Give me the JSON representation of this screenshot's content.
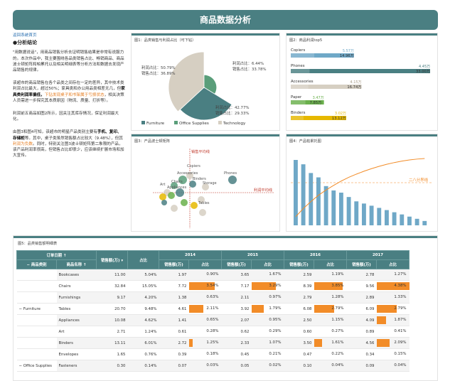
{
  "page": {
    "title": "商品数据分析"
  },
  "left": {
    "link": "返回系统首页",
    "section": "●分析结论",
    "p1": "\"用数据说话\"，用商品销售分析去证明销售结果是非常有说服力的。本次作品中，我主要围绕各品类销售占比、畅销商品、商品波士顿矩阵和帕累托以及相关明细表等分析方法和数据去发现产品销售的规律。",
    "p2a": "该超市的商品销售在各个品类之间存在一定的差异，其中技术类利润占比最大，超过50%；家具类和办公用品类相差无几，但",
    "p2b": "家具类利润率偏低，",
    "p2c": "下钻发现桌子和书架属于亏损状态",
    "p2d": "，相关决策人员需进一步探究其本质原因（物流、质量、打折等）。",
    "p3": "利润前五商品如图2所示，因关注其库存情况，保证利润最大化。",
    "p4a": "由图3和图4可知，该超市的明星产品类别主要有",
    "p4b": "手机、复印、存储柜",
    "p4c": "等。其中，桌子类虽然销售额占比较大（9.48%），但其",
    "p4d": "利润为负数",
    "p4e": "。同时，特别关注图3波士顿矩阵第二象限的产品，该产品利润率很高，但销售占比却很少，应该继续扩展市场和加大宣传。"
  },
  "pie": {
    "panel_title": "图1：品类销售与利润占比（可下钻）",
    "labels": [
      {
        "t": "利润占比：50.79%"
      },
      {
        "t": "销售占比：36.89%"
      },
      {
        "t": "利润占比：6.44%"
      },
      {
        "t": "销售占比：33.78%"
      },
      {
        "t": "利润占比：42.77%"
      },
      {
        "t": "销售占比：29.33%"
      }
    ],
    "legend": [
      "Furniture",
      "Office Supplies",
      "Technology"
    ]
  },
  "colors": {
    "teal": "#4a7f82",
    "furniture": "#4a7f82",
    "office": "#5a9e7a",
    "tech": "#d6cfc2",
    "orange": "#f28c28",
    "green": "#6ab04c",
    "yellow": "#e6b800",
    "blue": "#6fa8c7"
  },
  "chart_data": [
    {
      "type": "pie",
      "title": "",
      "slices": [
        {
          "category": "Technology",
          "profit_share": 50.79,
          "sales_share": 36.89
        },
        {
          "category": "Office Supplies",
          "profit_share": 6.44,
          "sales_share": 33.78
        },
        {
          "category": "Furniture",
          "profit_share": 42.77,
          "sales_share": 29.33
        }
      ]
    },
    {
      "type": "bar",
      "title": "图2：商品利润top5",
      "categories": [
        "Copiers",
        "Phones",
        "Accessories",
        "Paper",
        "Binders"
      ],
      "series": [
        {
          "values": [
            5.57,
            4.45,
            4.15,
            3.47,
            3.02
          ]
        },
        {
          "values": [
            14.96,
            33.0,
            16.74,
            7.85,
            13.12
          ]
        }
      ],
      "labels": [
        [
          "5.57万",
          "14.96万"
        ],
        [
          "4.45万",
          "33.00万"
        ],
        [
          "4.15万",
          "16.74万"
        ],
        [
          "3.47万",
          "7.85万"
        ],
        [
          "3.02万",
          "13.12万"
        ]
      ]
    },
    {
      "type": "scatter",
      "title": "图3：产品波士顿矩阵",
      "ref_lines": [
        "销售平均线",
        "利润平均线"
      ],
      "labels": [
        "Copiers",
        "Accessories",
        "Phones",
        "Chairs",
        "Binders",
        "Storage",
        "Appliances",
        "Art",
        "Tables"
      ]
    },
    {
      "type": "bar",
      "title": "图4：产品帕累托图",
      "line_label": "二八分界线",
      "values": [
        30,
        28,
        24,
        22,
        18,
        16,
        15,
        13,
        11,
        10,
        9,
        8,
        7,
        6,
        5,
        4,
        3,
        2
      ]
    }
  ],
  "table": {
    "title": "图5：品类销售额明细表",
    "h_order_date": "订单日期",
    "h_category": "商品类别",
    "h_name": "商品名称",
    "h_sales": "销售额(万)",
    "h_share": "占比",
    "years": [
      "2014",
      "2015",
      "2016",
      "2017"
    ],
    "group1": "Furniture",
    "group2": "Office Supplies",
    "rows": [
      {
        "name": "Bookcases",
        "sales": "11.00",
        "share": "5.04%",
        "y": [
          [
            "1.97",
            "0.90%"
          ],
          [
            "3.65",
            "1.67%"
          ],
          [
            "2.59",
            "1.19%"
          ],
          [
            "2.78",
            "1.27%"
          ]
        ],
        "f": [
          0.0,
          0.0,
          0.0,
          0.0
        ]
      },
      {
        "name": "Chairs",
        "sales": "32.84",
        "share": "15.05%",
        "y": [
          [
            "7.72",
            "3.54%"
          ],
          [
            "7.17",
            "3.29%"
          ],
          [
            "8.39",
            "3.85%"
          ],
          [
            "9.56",
            "4.38%"
          ]
        ],
        "f": [
          0.8,
          0.75,
          0.88,
          1.0
        ]
      },
      {
        "name": "Furnishings",
        "sales": "9.17",
        "share": "4.20%",
        "y": [
          [
            "1.38",
            "0.63%"
          ],
          [
            "2.11",
            "0.97%"
          ],
          [
            "2.79",
            "1.28%"
          ],
          [
            "2.89",
            "1.33%"
          ]
        ],
        "f": [
          0.0,
          0.0,
          0.0,
          0.0
        ]
      },
      {
        "name": "Tables",
        "sales": "20.70",
        "share": "9.48%",
        "y": [
          [
            "4.61",
            "2.11%"
          ],
          [
            "3.92",
            "1.79%"
          ],
          [
            "6.08",
            "2.79%"
          ],
          [
            "6.09",
            "2.79%"
          ]
        ],
        "f": [
          0.45,
          0.38,
          0.62,
          0.62
        ]
      },
      {
        "name": "Appliances",
        "sales": "10.08",
        "share": "4.62%",
        "y": [
          [
            "1.41",
            "0.65%"
          ],
          [
            "2.07",
            "0.95%"
          ],
          [
            "2.50",
            "1.15%"
          ],
          [
            "4.09",
            "1.87%"
          ]
        ],
        "f": [
          0.0,
          0.0,
          0.0,
          0.3
        ]
      },
      {
        "name": "Art",
        "sales": "2.71",
        "share": "1.24%",
        "y": [
          [
            "0.61",
            "0.28%"
          ],
          [
            "0.62",
            "0.29%"
          ],
          [
            "0.60",
            "0.27%"
          ],
          [
            "0.89",
            "0.41%"
          ]
        ],
        "f": [
          0.0,
          0.0,
          0.0,
          0.0
        ]
      },
      {
        "name": "Binders",
        "sales": "13.11",
        "share": "6.01%",
        "y": [
          [
            "2.72",
            "1.25%"
          ],
          [
            "2.33",
            "1.07%"
          ],
          [
            "3.50",
            "1.61%"
          ],
          [
            "4.56",
            "2.09%"
          ]
        ],
        "f": [
          0.12,
          0.0,
          0.25,
          0.4
        ]
      },
      {
        "name": "Envelopes",
        "sales": "1.65",
        "share": "0.76%",
        "y": [
          [
            "0.39",
            "0.18%"
          ],
          [
            "0.45",
            "0.21%"
          ],
          [
            "0.47",
            "0.22%"
          ],
          [
            "0.34",
            "0.15%"
          ]
        ],
        "f": [
          0.0,
          0.0,
          0.0,
          0.0
        ]
      },
      {
        "name": "Fasteners",
        "sales": "0.30",
        "share": "0.14%",
        "y": [
          [
            "0.07",
            "0.03%"
          ],
          [
            "0.05",
            "0.02%"
          ],
          [
            "0.10",
            "0.04%"
          ],
          [
            "0.09",
            "0.04%"
          ]
        ],
        "f": [
          0.0,
          0.0,
          0.0,
          0.0
        ]
      }
    ]
  }
}
